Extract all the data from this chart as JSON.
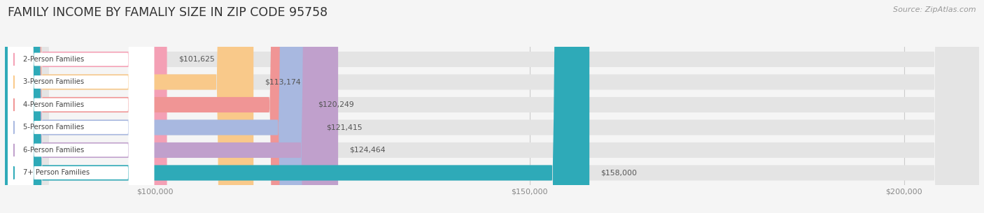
{
  "title": "FAMILY INCOME BY FAMALIY SIZE IN ZIP CODE 95758",
  "source": "Source: ZipAtlas.com",
  "categories": [
    "2-Person Families",
    "3-Person Families",
    "4-Person Families",
    "5-Person Families",
    "6-Person Families",
    "7+ Person Families"
  ],
  "values": [
    101625,
    113174,
    120249,
    121415,
    124464,
    158000
  ],
  "bar_colors": [
    "#F4A0B5",
    "#F9C98A",
    "#F09595",
    "#A8B8E0",
    "#C0A0CC",
    "#2EAAB8"
  ],
  "value_labels": [
    "$101,625",
    "$113,174",
    "$120,249",
    "$121,415",
    "$124,464",
    "$158,000"
  ],
  "xmin": 80000,
  "xmax": 210000,
  "xticks": [
    100000,
    150000,
    200000
  ],
  "xtick_labels": [
    "$100,000",
    "$150,000",
    "$200,000"
  ],
  "background_color": "#f5f5f5",
  "bar_bg_color": "#e4e4e4",
  "title_fontsize": 12.5,
  "bar_height": 0.68,
  "figsize": [
    14.06,
    3.05
  ]
}
